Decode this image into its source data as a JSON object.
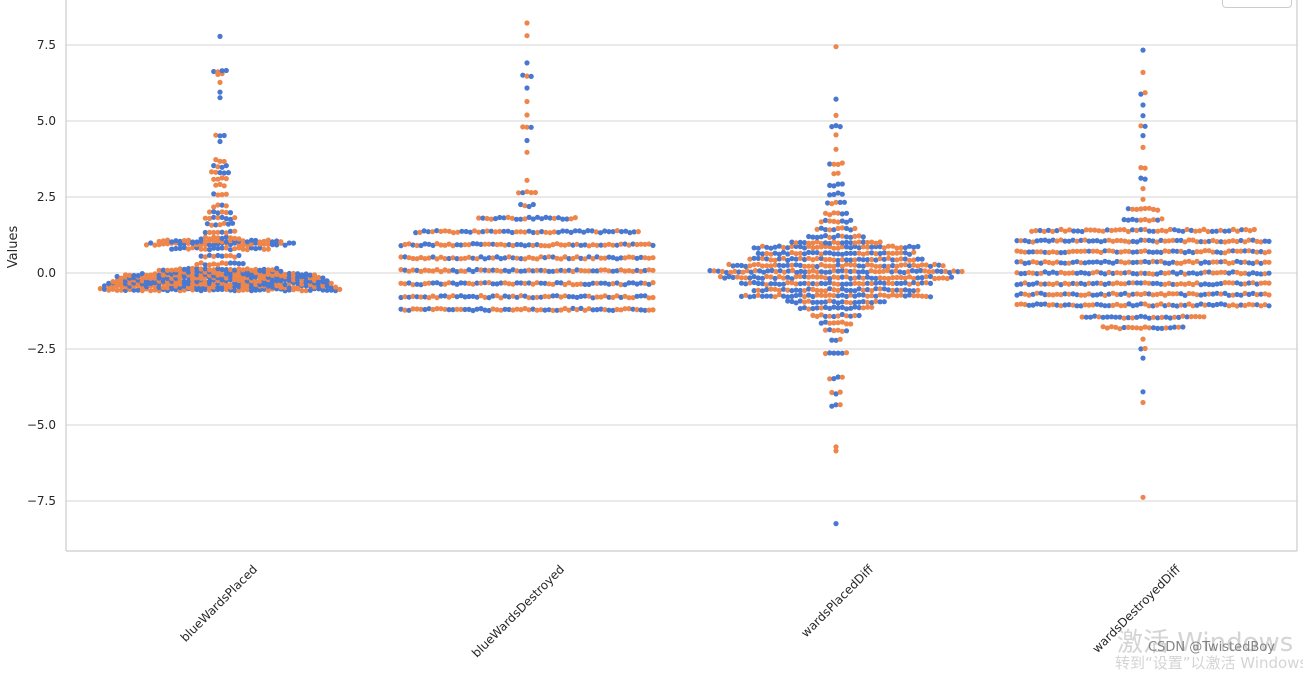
{
  "chart_data": {
    "type": "swarm",
    "title": "",
    "xlabel": "",
    "ylabel": "Values",
    "ylim": [
      -9.2,
      9.0
    ],
    "yticks": [
      7.5,
      5.0,
      2.5,
      0.0,
      -2.5,
      -5.0,
      -7.5
    ],
    "ytick_labels": [
      "7.5",
      "5.0",
      "2.5",
      "0.0",
      "−2.5",
      "−5.0",
      "−7.5"
    ],
    "categories": [
      "blueWardsPlaced",
      "blueWardsDestroyed",
      "wardsPlacedDiff",
      "wardsDestroyedDiff"
    ],
    "hue_colors": [
      "#4878d0",
      "#ee854a"
    ],
    "grid": true,
    "legend_position": "top-right",
    "groups": [
      {
        "name": "blueWardsPlaced",
        "bands": [
          {
            "y": -0.55,
            "count": 58
          },
          {
            "y": -0.45,
            "count": 56
          },
          {
            "y": -0.35,
            "count": 54
          },
          {
            "y": -0.25,
            "count": 52
          },
          {
            "y": -0.15,
            "count": 50
          },
          {
            "y": -0.05,
            "count": 46
          },
          {
            "y": 0.05,
            "count": 30
          },
          {
            "y": 0.12,
            "count": 28
          },
          {
            "y": 0.3,
            "count": 12
          },
          {
            "y": 0.55,
            "count": 10
          },
          {
            "y": 0.8,
            "count": 24
          },
          {
            "y": 0.95,
            "count": 36
          },
          {
            "y": 1.05,
            "count": 30
          },
          {
            "y": 1.15,
            "count": 10
          },
          {
            "y": 1.35,
            "count": 8
          },
          {
            "y": 1.6,
            "count": 7
          },
          {
            "y": 1.8,
            "count": 8
          },
          {
            "y": 2.0,
            "count": 6
          },
          {
            "y": 2.2,
            "count": 4
          },
          {
            "y": 2.6,
            "count": 4
          },
          {
            "y": 2.9,
            "count": 3
          },
          {
            "y": 3.1,
            "count": 4
          },
          {
            "y": 3.3,
            "count": 5
          },
          {
            "y": 3.5,
            "count": 4
          },
          {
            "y": 3.7,
            "count": 3
          },
          {
            "y": 4.35,
            "count": 1
          },
          {
            "y": 4.55,
            "count": 3
          },
          {
            "y": 5.8,
            "count": 1
          },
          {
            "y": 5.95,
            "count": 1
          },
          {
            "y": 6.25,
            "count": 1
          },
          {
            "y": 6.55,
            "count": 2
          },
          {
            "y": 6.65,
            "count": 4
          },
          {
            "y": 7.75,
            "count": 1
          }
        ]
      },
      {
        "name": "blueWardsDestroyed",
        "bands": [
          {
            "y": -1.2,
            "count": 64
          },
          {
            "y": -0.78,
            "count": 64
          },
          {
            "y": -0.35,
            "count": 64
          },
          {
            "y": 0.08,
            "count": 64
          },
          {
            "y": 0.5,
            "count": 64
          },
          {
            "y": 0.93,
            "count": 64
          },
          {
            "y": 1.36,
            "count": 54
          },
          {
            "y": 1.8,
            "count": 24
          },
          {
            "y": 2.22,
            "count": 4
          },
          {
            "y": 2.65,
            "count": 5
          },
          {
            "y": 3.08,
            "count": 1
          },
          {
            "y": 3.95,
            "count": 1
          },
          {
            "y": 4.38,
            "count": 1
          },
          {
            "y": 4.8,
            "count": 3
          },
          {
            "y": 5.22,
            "count": 1
          },
          {
            "y": 5.65,
            "count": 1
          },
          {
            "y": 6.08,
            "count": 1
          },
          {
            "y": 6.5,
            "count": 3
          },
          {
            "y": 6.92,
            "count": 1
          },
          {
            "y": 7.78,
            "count": 1
          },
          {
            "y": 8.2,
            "count": 1
          }
        ]
      },
      {
        "name": "wardsPlacedDiff",
        "bands": [
          {
            "y": 0.05,
            "count": 62
          },
          {
            "y": -0.15,
            "count": 56
          },
          {
            "y": 0.25,
            "count": 52
          },
          {
            "y": -0.35,
            "count": 46
          },
          {
            "y": 0.45,
            "count": 42
          },
          {
            "y": -0.55,
            "count": 40
          },
          {
            "y": 0.65,
            "count": 38
          },
          {
            "y": -0.75,
            "count": 46
          },
          {
            "y": 0.85,
            "count": 40
          },
          {
            "y": -0.95,
            "count": 24
          },
          {
            "y": 1.0,
            "count": 22
          },
          {
            "y": -1.15,
            "count": 18
          },
          {
            "y": 1.2,
            "count": 14
          },
          {
            "y": -1.4,
            "count": 12
          },
          {
            "y": 1.45,
            "count": 10
          },
          {
            "y": -1.65,
            "count": 8
          },
          {
            "y": 1.7,
            "count": 8
          },
          {
            "y": -1.9,
            "count": 6
          },
          {
            "y": 1.95,
            "count": 6
          },
          {
            "y": -2.2,
            "count": 3
          },
          {
            "y": 2.3,
            "count": 5
          },
          {
            "y": 2.6,
            "count": 4
          },
          {
            "y": -2.65,
            "count": 6
          },
          {
            "y": 2.9,
            "count": 4
          },
          {
            "y": 3.3,
            "count": 2
          },
          {
            "y": -3.45,
            "count": 4
          },
          {
            "y": 3.6,
            "count": 4
          },
          {
            "y": -3.95,
            "count": 3
          },
          {
            "y": 4.1,
            "count": 1
          },
          {
            "y": -4.35,
            "count": 3
          },
          {
            "y": 4.55,
            "count": 1
          },
          {
            "y": 4.85,
            "count": 3
          },
          {
            "y": 5.15,
            "count": 1
          },
          {
            "y": 5.75,
            "count": 1
          },
          {
            "y": -5.7,
            "count": 1
          },
          {
            "y": -5.85,
            "count": 1
          },
          {
            "y": 7.45,
            "count": 1
          },
          {
            "y": -8.25,
            "count": 1
          }
        ]
      },
      {
        "name": "wardsDestroyedDiff",
        "bands": [
          {
            "y": -1.05,
            "count": 64
          },
          {
            "y": -0.7,
            "count": 64
          },
          {
            "y": -0.35,
            "count": 64
          },
          {
            "y": 0.0,
            "count": 64
          },
          {
            "y": 0.35,
            "count": 64
          },
          {
            "y": 0.7,
            "count": 64
          },
          {
            "y": 1.05,
            "count": 64
          },
          {
            "y": 1.4,
            "count": 54
          },
          {
            "y": -1.45,
            "count": 30
          },
          {
            "y": -1.8,
            "count": 20
          },
          {
            "y": 1.75,
            "count": 10
          },
          {
            "y": 2.1,
            "count": 8
          },
          {
            "y": -2.15,
            "count": 1
          },
          {
            "y": 2.45,
            "count": 1
          },
          {
            "y": -2.5,
            "count": 2
          },
          {
            "y": 2.75,
            "count": 1
          },
          {
            "y": -2.8,
            "count": 1
          },
          {
            "y": 3.1,
            "count": 2
          },
          {
            "y": 3.45,
            "count": 2
          },
          {
            "y": -3.9,
            "count": 1
          },
          {
            "y": 4.15,
            "count": 1
          },
          {
            "y": -4.25,
            "count": 1
          },
          {
            "y": 4.5,
            "count": 1
          },
          {
            "y": 4.85,
            "count": 2
          },
          {
            "y": 5.2,
            "count": 1
          },
          {
            "y": 5.55,
            "count": 1
          },
          {
            "y": 5.9,
            "count": 2
          },
          {
            "y": 6.6,
            "count": 1
          },
          {
            "y": 7.3,
            "count": 1
          },
          {
            "y": -7.35,
            "count": 1
          }
        ]
      }
    ]
  },
  "watermark": {
    "activate_main": "激活 Windows",
    "activate_sub": "转到“设置”以激活 Windows",
    "csdn": "CSDN @TwistedBoy"
  }
}
